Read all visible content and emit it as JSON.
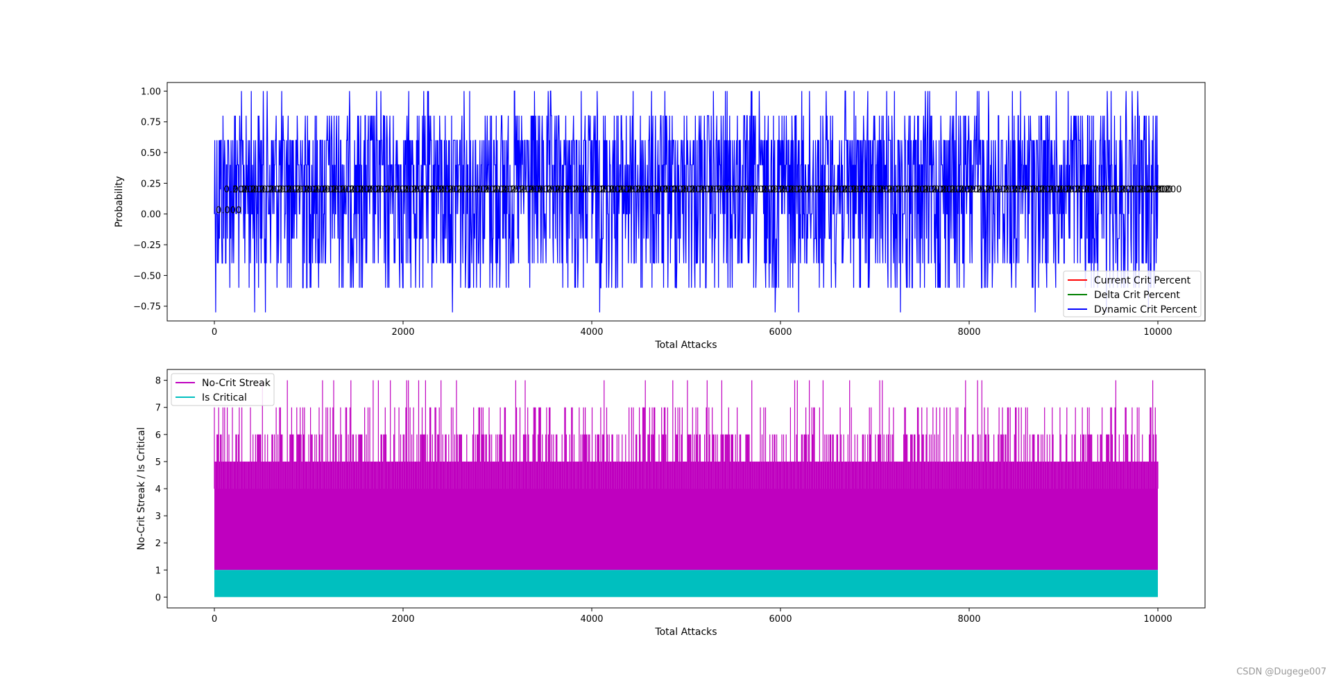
{
  "watermark": "CSDN @Dugege007",
  "chart_data": [
    {
      "type": "line",
      "xlabel": "Total Attacks",
      "ylabel": "Probability",
      "xlim": [
        -500,
        10500
      ],
      "ylim": [
        -0.87,
        1.07
      ],
      "xticks": [
        0,
        2000,
        4000,
        6000,
        8000,
        10000
      ],
      "yticks": [
        -0.75,
        -0.5,
        -0.25,
        0.0,
        0.25,
        0.5,
        0.75,
        1.0
      ],
      "ytick_labels": [
        "−0.75",
        "−0.50",
        "−0.25",
        "0.00",
        "0.25",
        "0.50",
        "0.75",
        "1.00"
      ],
      "x_range": [
        0,
        10000
      ],
      "legend_position": "lower right",
      "grid": false,
      "series": [
        {
          "name": "Current Crit Percent",
          "color": "#ff0000",
          "constant_value": 0.2
        },
        {
          "name": "Delta Crit Percent",
          "color": "#008000",
          "constant_value": 0.0
        },
        {
          "name": "Dynamic Crit Percent",
          "color": "#0000ff",
          "levels": [
            -0.8,
            -0.6,
            -0.4,
            -0.2,
            0.0,
            0.2,
            0.4,
            0.6,
            0.8,
            1.0
          ],
          "typical_range": [
            -0.6,
            0.8
          ]
        }
      ],
      "annotations": {
        "repeated_label_value": "0.200",
        "repeated_label_y": 0.2,
        "first_labels": [
          "0.000",
          "0.200"
        ],
        "last_label": "0.200"
      }
    },
    {
      "type": "area",
      "xlabel": "Total Attacks",
      "ylabel": "No-Crit Streak / Is Critical",
      "xlim": [
        -500,
        10500
      ],
      "ylim": [
        -0.4,
        8.4
      ],
      "xticks": [
        0,
        2000,
        4000,
        6000,
        8000,
        10000
      ],
      "yticks": [
        0,
        1,
        2,
        3,
        4,
        5,
        6,
        7,
        8
      ],
      "x_range": [
        0,
        10000
      ],
      "legend_position": "upper left",
      "grid": false,
      "series": [
        {
          "name": "No-Crit Streak",
          "color": "#bf00bf",
          "dense_range": [
            1,
            4
          ],
          "max": 8
        },
        {
          "name": "Is Critical",
          "color": "#00bfbf",
          "values_range": [
            0,
            1
          ]
        }
      ]
    }
  ]
}
